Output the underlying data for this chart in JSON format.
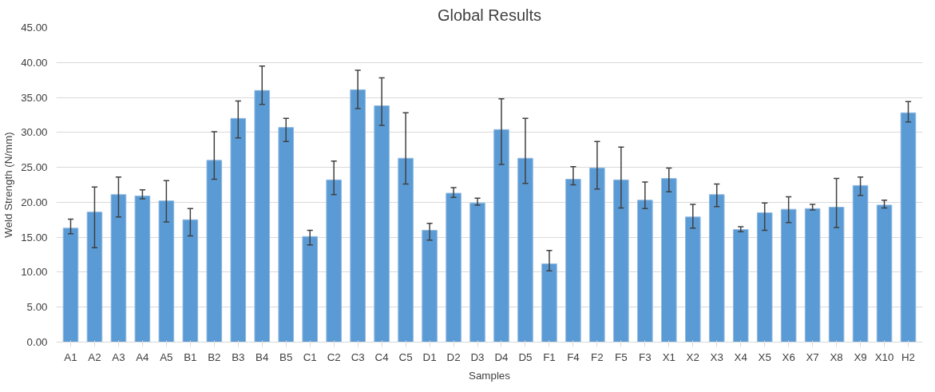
{
  "chart_data": {
    "type": "bar",
    "title": "Global Results",
    "xlabel": "Samples",
    "ylabel": "Weld Strength (N/mm)",
    "categories": [
      "A1",
      "A2",
      "A3",
      "A4",
      "A5",
      "B1",
      "B2",
      "B3",
      "B4",
      "B5",
      "C1",
      "C2",
      "C3",
      "C4",
      "C5",
      "D1",
      "D2",
      "D3",
      "D4",
      "D5",
      "F1",
      "F4",
      "F2",
      "F5",
      "F3",
      "X1",
      "X2",
      "X3",
      "X4",
      "X5",
      "X6",
      "X7",
      "X8",
      "X9",
      "X10",
      "H2"
    ],
    "values": [
      16.3,
      18.6,
      21.1,
      20.9,
      20.2,
      17.5,
      26.0,
      32.0,
      36.0,
      30.7,
      15.1,
      23.2,
      36.1,
      33.8,
      26.3,
      16.0,
      21.3,
      19.9,
      30.4,
      26.3,
      11.2,
      23.3,
      24.9,
      23.2,
      20.3,
      23.4,
      17.9,
      21.1,
      16.1,
      18.5,
      19.0,
      19.1,
      19.3,
      22.4,
      19.6,
      32.8
    ],
    "errors": [
      [
        15.5,
        17.6
      ],
      [
        13.5,
        22.2
      ],
      [
        17.9,
        23.6
      ],
      [
        20.5,
        21.8
      ],
      [
        17.2,
        23.1
      ],
      [
        15.2,
        19.1
      ],
      [
        23.3,
        30.1
      ],
      [
        29.2,
        34.5
      ],
      [
        34.0,
        39.5
      ],
      [
        28.7,
        32.0
      ],
      [
        13.9,
        16.0
      ],
      [
        21.1,
        25.9
      ],
      [
        33.4,
        38.9
      ],
      [
        31.0,
        37.8
      ],
      [
        22.6,
        32.8
      ],
      [
        14.6,
        17.0
      ],
      [
        20.7,
        22.1
      ],
      [
        19.6,
        20.6
      ],
      [
        25.4,
        34.8
      ],
      [
        22.7,
        32.0
      ],
      [
        10.2,
        13.1
      ],
      [
        22.5,
        25.1
      ],
      [
        21.9,
        28.7
      ],
      [
        19.2,
        27.9
      ],
      [
        19.1,
        22.9
      ],
      [
        21.5,
        24.9
      ],
      [
        16.3,
        19.7
      ],
      [
        19.4,
        22.6
      ],
      [
        15.8,
        16.5
      ],
      [
        16.0,
        19.9
      ],
      [
        17.1,
        20.8
      ],
      [
        18.9,
        19.7
      ],
      [
        16.4,
        23.4
      ],
      [
        21.0,
        23.6
      ],
      [
        19.2,
        20.3
      ],
      [
        31.5,
        34.4
      ]
    ],
    "color": "#5b9bd5",
    "ylim": [
      0,
      45
    ],
    "yticks": [
      {
        "value": 0,
        "label": "0.00"
      },
      {
        "value": 5,
        "label": "5.00"
      },
      {
        "value": 10,
        "label": "10.00"
      },
      {
        "value": 15,
        "label": "15.00"
      },
      {
        "value": 20,
        "label": "20.00"
      },
      {
        "value": 25,
        "label": "25.00"
      },
      {
        "value": 30,
        "label": "30.00"
      },
      {
        "value": 35,
        "label": "35.00"
      },
      {
        "value": 40,
        "label": "40.00"
      },
      {
        "value": 45,
        "label": "45.00"
      }
    ],
    "grid": "y"
  }
}
